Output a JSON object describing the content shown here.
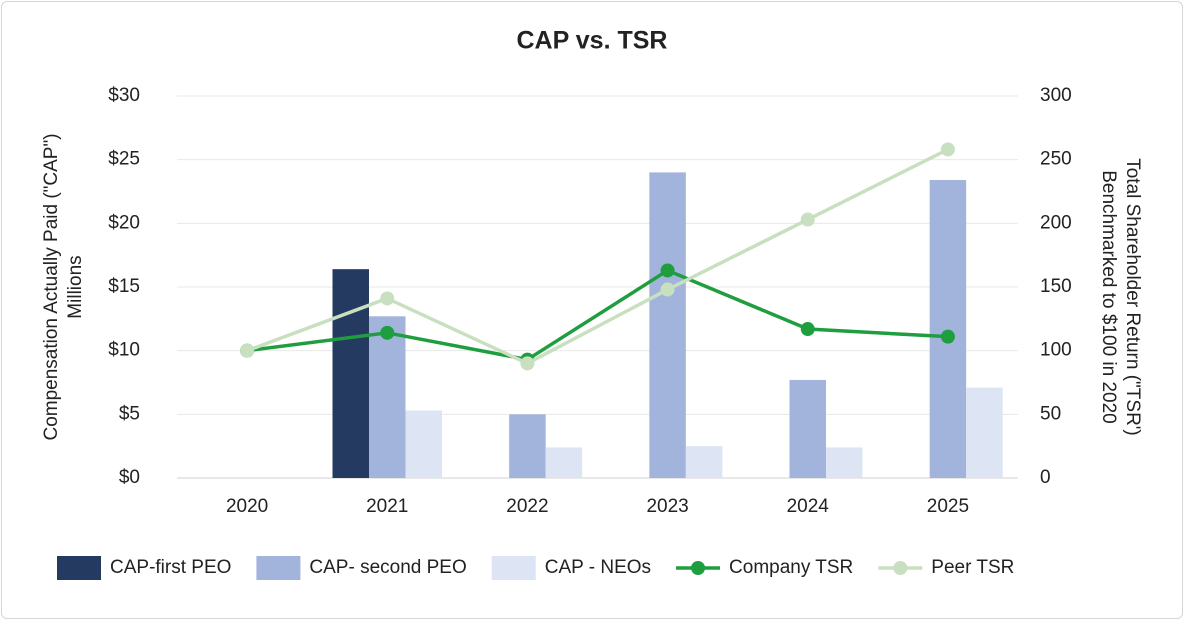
{
  "chart_data": {
    "type": "bar",
    "title": "CAP vs. TSR",
    "categories": [
      "2020",
      "2021",
      "2022",
      "2023",
      "2024",
      "2025"
    ],
    "ylabel": [
      "Compensation Actually Paid (\"CAP\")",
      "Millions"
    ],
    "y2label": [
      "Total Shareholder Return (\"TSR')",
      "Benchmarked to $100 in 2020"
    ],
    "ylim": [
      0,
      30
    ],
    "yticks": [
      {
        "value": 0,
        "label": "$0"
      },
      {
        "value": 5,
        "label": "$5"
      },
      {
        "value": 10,
        "label": "$10"
      },
      {
        "value": 15,
        "label": "$15"
      },
      {
        "value": 20,
        "label": "$20"
      },
      {
        "value": 25,
        "label": "$25"
      },
      {
        "value": 30,
        "label": "$30"
      }
    ],
    "y2lim": [
      0,
      300
    ],
    "y2ticks": [
      0,
      50,
      100,
      150,
      200,
      250,
      300
    ],
    "grid": true,
    "legend": "bottom",
    "series": [
      {
        "name": "CAP-first PEO",
        "type": "bar",
        "color": "#253a60",
        "values": [
          null,
          16.4,
          null,
          null,
          null,
          null
        ]
      },
      {
        "name": "CAP- second PEO",
        "type": "bar",
        "color": "#a2b4dc",
        "values": [
          null,
          12.7,
          5.0,
          24.0,
          7.7,
          23.4
        ]
      },
      {
        "name": "CAP - NEOs",
        "type": "bar",
        "color": "#dde4f3",
        "values": [
          null,
          5.3,
          2.4,
          2.5,
          2.4,
          7.1
        ]
      },
      {
        "name": "Company TSR",
        "type": "line",
        "axis": "y2",
        "color": "#1e9e3e",
        "values": [
          100,
          114,
          93,
          163,
          117,
          111
        ]
      },
      {
        "name": "Peer TSR",
        "type": "line",
        "axis": "y2",
        "color": "#c8dfc0",
        "values": [
          100,
          141,
          90,
          148,
          203,
          258
        ]
      }
    ]
  }
}
